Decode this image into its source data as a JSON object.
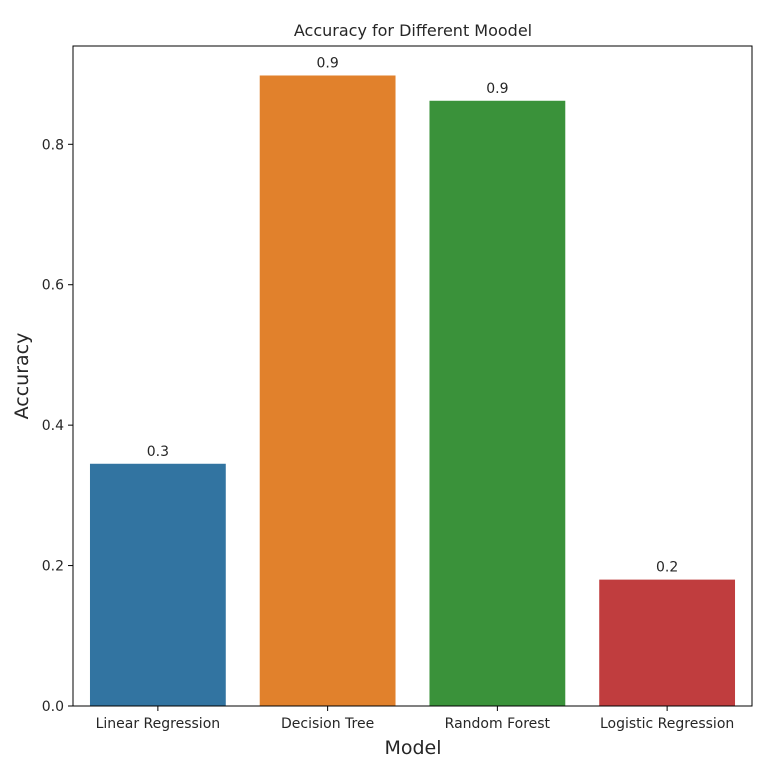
{
  "chart_data": {
    "type": "bar",
    "title": "Accuracy for Different Moodel",
    "xlabel": "Model",
    "ylabel": "Accuracy",
    "categories": [
      "Linear Regression",
      "Decision Tree",
      "Random Forest",
      "Logistic Regression"
    ],
    "values": [
      0.345,
      0.898,
      0.862,
      0.18
    ],
    "data_labels": [
      "0.3",
      "0.9",
      "0.9",
      "0.2"
    ],
    "colors": [
      "#3274a1",
      "#e1812c",
      "#3a923a",
      "#c03d3e"
    ],
    "ylim": [
      0,
      0.94
    ],
    "yticks": [
      0.0,
      0.2,
      0.4,
      0.6,
      0.8
    ],
    "ytick_labels": [
      "0.0",
      "0.2",
      "0.4",
      "0.6",
      "0.8"
    ],
    "grid": false,
    "legend": "none"
  }
}
